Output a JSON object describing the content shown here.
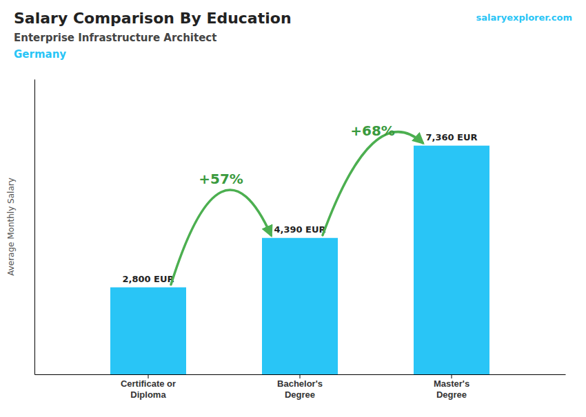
{
  "chart_data": {
    "type": "bar",
    "title": "Salary Comparison By Education",
    "subtitle": "Enterprise Infrastructure Architect",
    "country": "Germany",
    "source": "salaryexplorer.com",
    "ylabel": "Average Monthly Salary",
    "categories": [
      "Certificate or\nDiploma",
      "Bachelor's\nDegree",
      "Master's\nDegree"
    ],
    "values": [
      2800,
      4390,
      7360
    ],
    "value_labels": [
      "2,800 EUR",
      "4,390 EUR",
      "7,360 EUR"
    ],
    "data_labels": true,
    "annotations": [
      "+57%",
      "+68%"
    ],
    "color": "#29c5f6",
    "ylim": [
      0,
      9500
    ],
    "tick_labels": "x"
  }
}
